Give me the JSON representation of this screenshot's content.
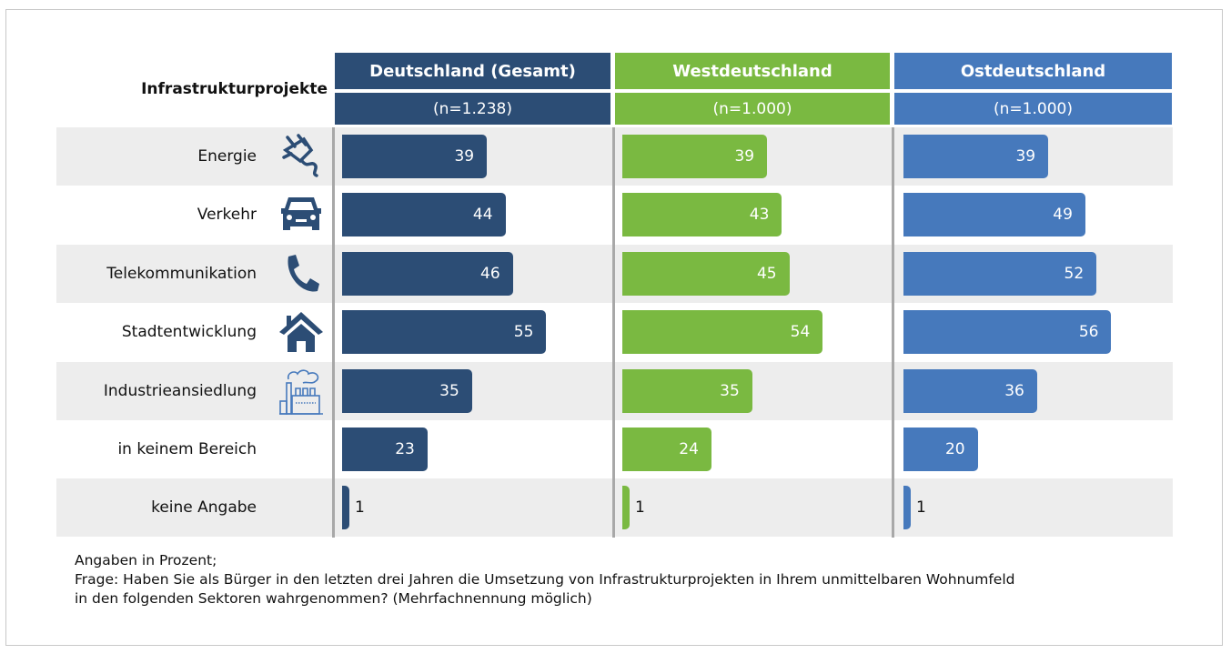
{
  "chart_data": {
    "type": "bar",
    "title": "Infrastrukturprojekte",
    "categories": [
      "Energie",
      "Verkehr",
      "Telekommunikation",
      "Stadtentwicklung",
      "Industrieansiedlung",
      "in keinem Bereich",
      "keine Angabe"
    ],
    "category_icons": [
      "plug-icon",
      "car-icon",
      "phone-icon",
      "house-icon",
      "factory-icon",
      "",
      ""
    ],
    "series": [
      {
        "name": "Deutschland (Gesamt)",
        "sample": "(n=1.238)",
        "color": "#2c4d75",
        "values": [
          39,
          44,
          46,
          55,
          35,
          23,
          1
        ]
      },
      {
        "name": "Westdeutschland",
        "sample": "(n=1.000)",
        "color": "#7ab941",
        "values": [
          39,
          43,
          45,
          54,
          35,
          24,
          1
        ]
      },
      {
        "name": "Ostdeutschland",
        "sample": "(n=1.000)",
        "color": "#4679bc",
        "values": [
          39,
          49,
          52,
          56,
          36,
          20,
          1
        ]
      }
    ],
    "xlabel": "",
    "ylabel": "",
    "unit": "Prozent",
    "grid": false,
    "legend": "top (column headers)"
  },
  "footnote": {
    "line1": "Angaben in Prozent;",
    "line2": "Frage: Haben Sie als Bürger in den letzten drei Jahren die Umsetzung von Infrastrukturprojekten in Ihrem unmittelbaren Wohnumfeld",
    "line3": "in den folgenden Sektoren wahrgenommen? (Mehrfachnennung möglich)"
  },
  "colors": {
    "row_stripe": "#ededed",
    "divider": "#a8a8a8"
  }
}
